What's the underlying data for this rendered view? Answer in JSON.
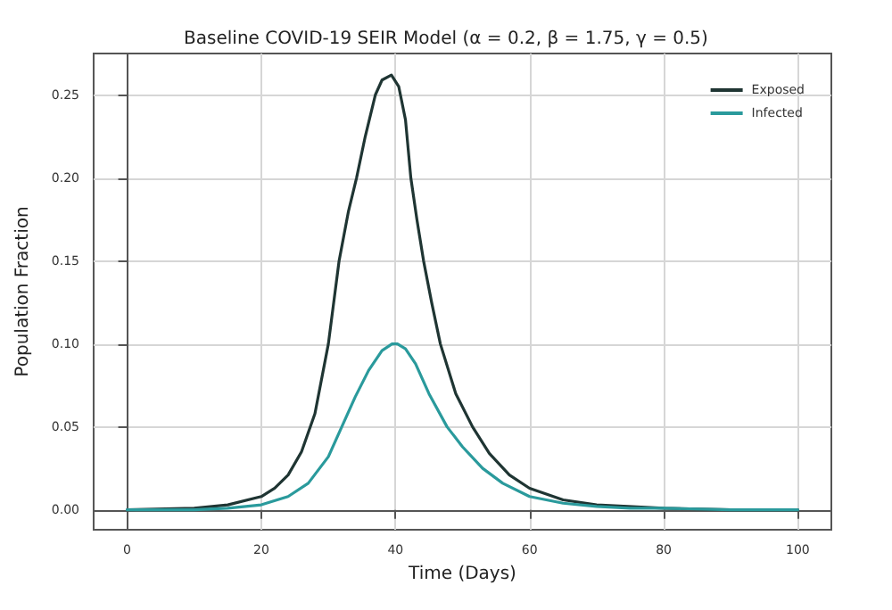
{
  "chart_data": {
    "type": "line",
    "title": "Baseline COVID-19 SEIR Model (α = 0.2, β = 1.75, γ = 0.5)",
    "xlabel": "Time (Days)",
    "ylabel": "Population Fraction",
    "xlim": [
      -5,
      105
    ],
    "xticks": [
      0,
      20,
      40,
      60,
      80,
      100
    ],
    "ylim": [
      -0.012,
      0.275
    ],
    "yticks": [
      {
        "value": 0,
        "label": "0.00"
      },
      {
        "value": 0.05,
        "label": "0.05"
      },
      {
        "value": 0.1,
        "label": "0.10"
      },
      {
        "value": 0.15,
        "label": "0.15"
      },
      {
        "value": 0.2,
        "label": "0.20"
      },
      {
        "value": 0.25,
        "label": "0.25"
      }
    ],
    "grid": true,
    "legend": "top right",
    "marker": "none",
    "line_style": "solid",
    "series": [
      {
        "name": "Exposed",
        "color": "#1f3533",
        "x": [
          0,
          10,
          15,
          20,
          22,
          24,
          26,
          28,
          30,
          31.6,
          33,
          34.2,
          35.5,
          37,
          38,
          39.4,
          40.5,
          41.5,
          42.3,
          43.2,
          44.2,
          45.4,
          46.7,
          49,
          51.5,
          54,
          57,
          60,
          65,
          70,
          80,
          90,
          100
        ],
        "values": [
          0,
          0.001,
          0.003,
          0.008,
          0.013,
          0.021,
          0.035,
          0.058,
          0.1,
          0.15,
          0.18,
          0.2,
          0.225,
          0.25,
          0.259,
          0.262,
          0.255,
          0.235,
          0.2,
          0.175,
          0.15,
          0.125,
          0.1,
          0.07,
          0.05,
          0.034,
          0.021,
          0.013,
          0.006,
          0.003,
          0.001,
          0,
          0
        ]
      },
      {
        "name": "Infected",
        "color": "#2a9a9c",
        "x": [
          0,
          5,
          10,
          15,
          20,
          24,
          27,
          30,
          32,
          34,
          36,
          38,
          39.5,
          40.3,
          41.5,
          43,
          45,
          47.7,
          50,
          53,
          56,
          60,
          65,
          70,
          75,
          80,
          90,
          100
        ],
        "values": [
          0,
          0,
          0,
          0.001,
          0.003,
          0.008,
          0.016,
          0.032,
          0.05,
          0.068,
          0.084,
          0.096,
          0.1,
          0.1,
          0.097,
          0.088,
          0.07,
          0.05,
          0.038,
          0.025,
          0.016,
          0.008,
          0.004,
          0.002,
          0.001,
          0.001,
          0,
          0
        ]
      }
    ]
  }
}
